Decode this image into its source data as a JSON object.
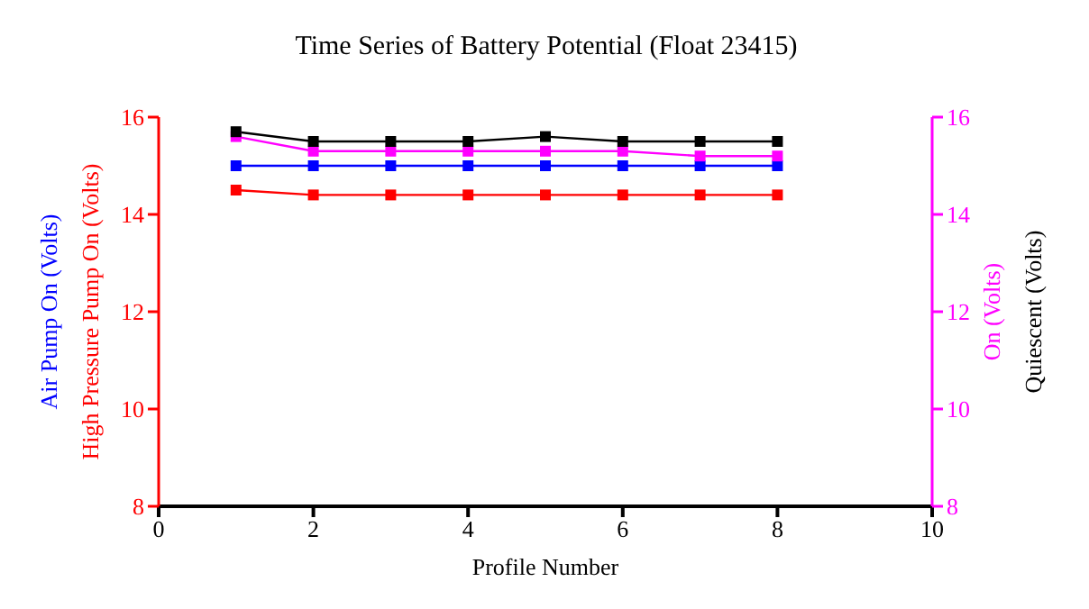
{
  "chart_data": {
    "type": "line",
    "title": "Time Series of Battery Potential (Float 23415)",
    "xlabel": "Profile Number",
    "x": [
      1,
      2,
      3,
      4,
      5,
      6,
      7,
      8
    ],
    "xlim": [
      0,
      10
    ],
    "xticks": [
      0,
      2,
      4,
      6,
      8,
      10
    ],
    "ylim": [
      8,
      16
    ],
    "yticks": [
      8,
      10,
      12,
      14,
      16
    ],
    "y2lim": [
      8,
      16
    ],
    "y2ticks": [
      8,
      10,
      12,
      14,
      16
    ],
    "grid": false,
    "marker": "square",
    "line_style": "solid",
    "series": [
      {
        "name": "Air Pump On (Volts)",
        "color": "#0000ff",
        "axis": "y",
        "values": [
          15.0,
          15.0,
          15.0,
          15.0,
          15.0,
          15.0,
          15.0,
          15.0
        ]
      },
      {
        "name": "High Pressure Pump On (Volts)",
        "color": "#ff0000",
        "axis": "y",
        "values": [
          14.5,
          14.4,
          14.4,
          14.4,
          14.4,
          14.4,
          14.4,
          14.4
        ]
      },
      {
        "name": "On (Volts)",
        "color": "#ff00ff",
        "axis": "y2",
        "values": [
          15.6,
          15.3,
          15.3,
          15.3,
          15.3,
          15.3,
          15.2,
          15.2
        ]
      },
      {
        "name": "Quiescent (Volts)",
        "color": "#000000",
        "axis": "y2",
        "values": [
          15.7,
          15.5,
          15.5,
          15.5,
          15.6,
          15.5,
          15.5,
          15.5
        ]
      }
    ]
  }
}
